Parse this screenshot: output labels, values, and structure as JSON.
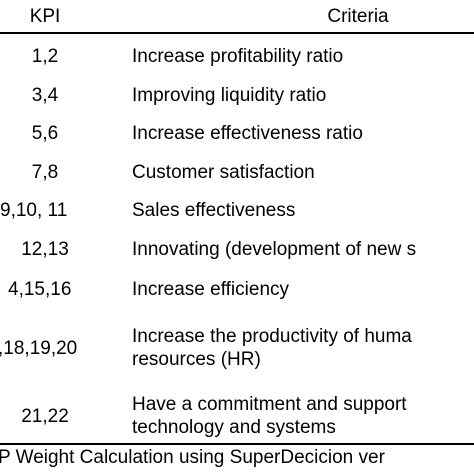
{
  "header": {
    "kpi": "KPI",
    "criteria": "Criteria"
  },
  "rows": [
    {
      "kpi": "1,2",
      "criteria": [
        "Increase profitability ratio"
      ]
    },
    {
      "kpi": "3,4",
      "criteria": [
        "Improving liquidity ratio"
      ]
    },
    {
      "kpi": "5,6",
      "criteria": [
        "Increase effectiveness ratio"
      ]
    },
    {
      "kpi": "7,8",
      "criteria": [
        "Customer satisfaction"
      ]
    },
    {
      "kpi": "9,10, 11",
      "criteria": [
        "Sales effectiveness"
      ]
    },
    {
      "kpi": "12,13",
      "criteria": [
        "Innovating (development of new s"
      ]
    },
    {
      "kpi": "4,15,16",
      "criteria": [
        "Increase efficiency"
      ]
    },
    {
      "kpi": ",18,19,20",
      "criteria": [
        "Increase the productivity of huma",
        "resources (HR)"
      ]
    },
    {
      "kpi": "21,22",
      "criteria": [
        "Have a commitment and support",
        "technology and systems"
      ]
    }
  ],
  "caption": "P Weight Calculation using SuperDecicion ver"
}
